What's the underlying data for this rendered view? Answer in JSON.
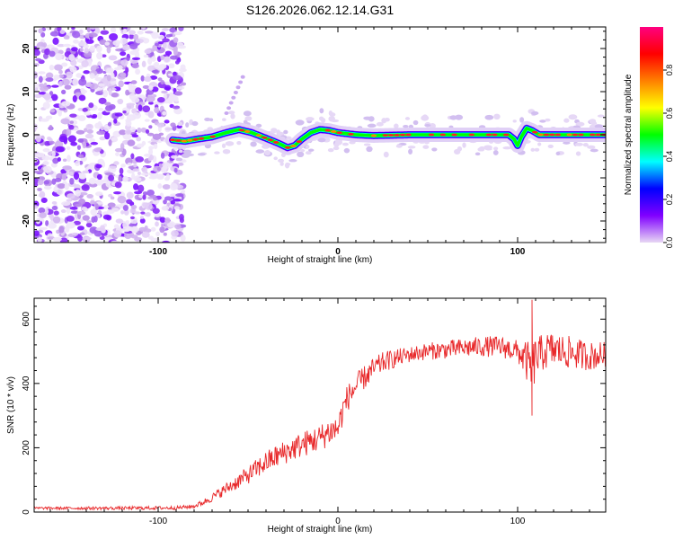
{
  "title": "S126.2026.062.12.14.G31",
  "chart_data": [
    {
      "type": "heatmap",
      "xlabel": "Height of straight line (km)",
      "ylabel": "Frequency (Hz)",
      "xlim": [
        -169,
        149
      ],
      "ylim": [
        -25,
        25
      ],
      "xticks": [
        -100,
        0,
        100
      ],
      "yticks": [
        -20,
        -10,
        0,
        10,
        20
      ],
      "noise_region_x": [
        -169,
        -90
      ],
      "signal_track": {
        "x": [
          -92,
          -85,
          -78,
          -70,
          -62,
          -55,
          -48,
          -40,
          -33,
          -28,
          -24,
          -20,
          -15,
          -10,
          -5,
          0,
          10,
          20,
          40,
          60,
          80,
          95,
          98,
          100,
          102,
          105,
          108,
          112,
          120,
          149
        ],
        "freq": [
          -1.2,
          -1.5,
          -1.0,
          -0.5,
          0.5,
          1.2,
          0.5,
          -0.8,
          -2.0,
          -3.0,
          -2.5,
          -1.0,
          0.5,
          1.2,
          1.0,
          0.5,
          0.0,
          -0.2,
          0.0,
          0.0,
          0.0,
          0.0,
          -1.0,
          -2.5,
          -0.5,
          1.5,
          1.0,
          0.0,
          0.0,
          0.0
        ]
      },
      "colorbar": {
        "label": "Normalized spectral amplitude",
        "range": [
          0,
          1
        ],
        "ticks": [
          0.0,
          0.2,
          0.4,
          0.6,
          0.8
        ],
        "tick_labels": [
          "0.0",
          "0.2",
          "0.4",
          "0.6",
          "0.8"
        ],
        "colors": [
          "#e8d8f4",
          "#8000ff",
          "#0000ff",
          "#00ffff",
          "#00ff00",
          "#ffff00",
          "#ff8000",
          "#ff0000",
          "#ff0080"
        ]
      }
    },
    {
      "type": "line",
      "xlabel": "Height of straight line (km)",
      "ylabel": "SNR (10 * v/v)",
      "xlim": [
        -169,
        149
      ],
      "ylim": [
        0,
        665
      ],
      "xticks": [
        -100,
        0,
        100
      ],
      "yticks": [
        0,
        200,
        400,
        600
      ],
      "color": "#e8282a",
      "series": [
        {
          "name": "SNR",
          "envelope_x": [
            -169,
            -120,
            -90,
            -80,
            -75,
            -70,
            -60,
            -50,
            -40,
            -30,
            -20,
            -10,
            -5,
            0,
            2,
            4,
            6,
            10,
            15,
            20,
            25,
            30,
            40,
            50,
            60,
            70,
            80,
            90,
            100,
            105,
            108,
            110,
            115,
            120,
            130,
            140,
            149
          ],
          "envelope_y": [
            12,
            12,
            13,
            18,
            30,
            45,
            80,
            115,
            155,
            185,
            210,
            230,
            250,
            260,
            300,
            340,
            360,
            390,
            420,
            445,
            465,
            475,
            490,
            500,
            505,
            510,
            515,
            515,
            500,
            470,
            440,
            480,
            500,
            505,
            495,
            485,
            490
          ],
          "noise_x": [
            -169,
            -80,
            -40,
            0,
            40,
            100,
            108,
            112,
            149
          ],
          "noise_amp": [
            4,
            6,
            35,
            45,
            25,
            35,
            80,
            60,
            40
          ],
          "annotations": [
            {
              "x": 108,
              "y": 300,
              "note": "dip"
            },
            {
              "x": 108,
              "y": 660,
              "note": "spike"
            }
          ]
        }
      ]
    }
  ]
}
